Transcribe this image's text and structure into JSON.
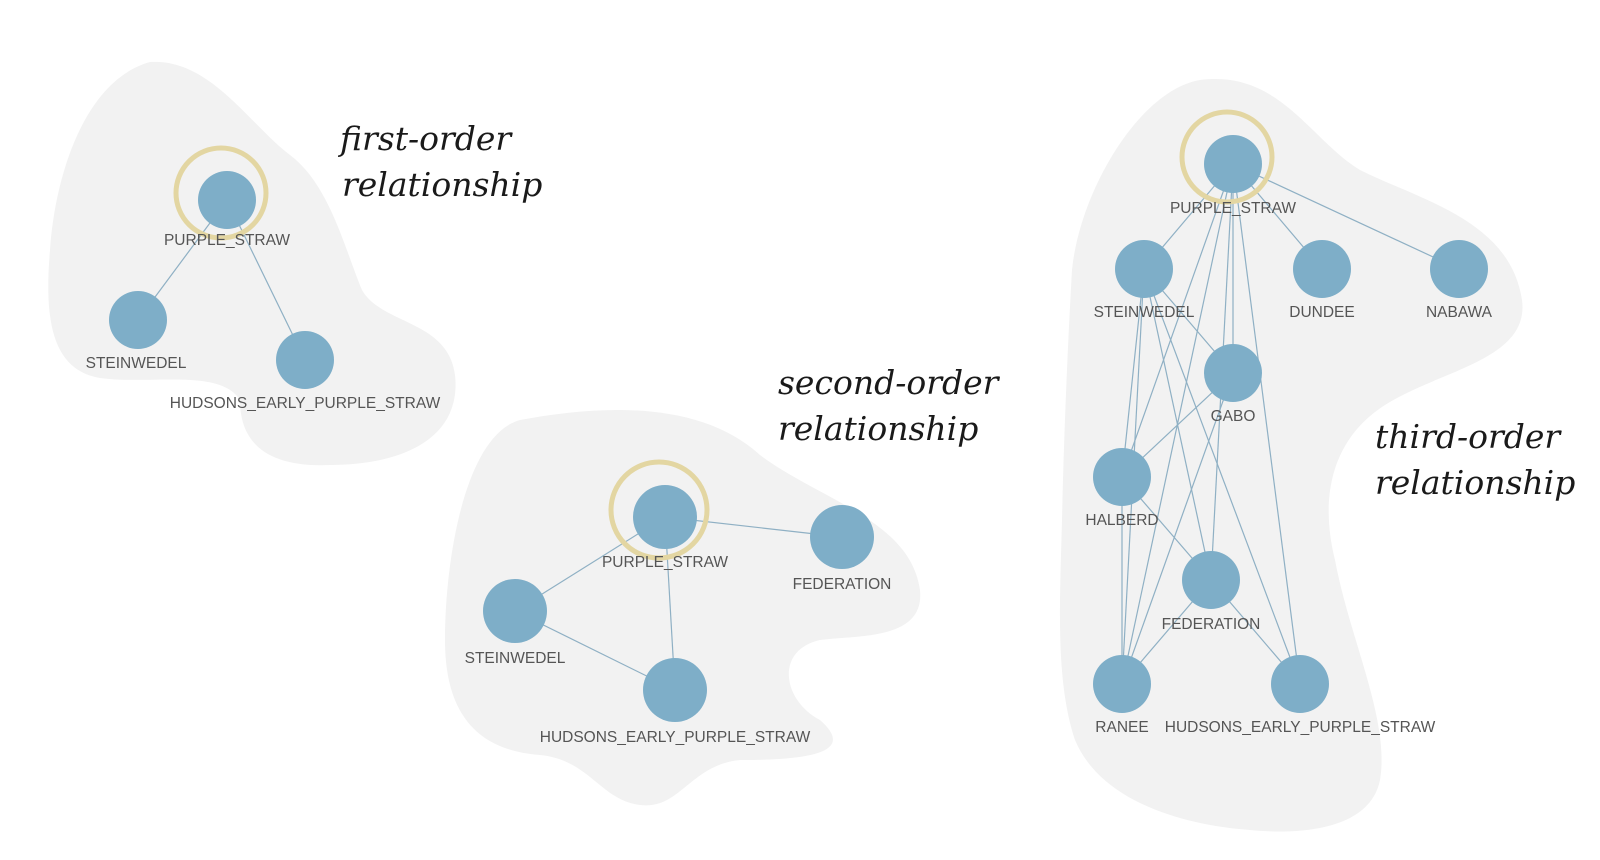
{
  "panels": [
    {
      "id": "first-order",
      "caption_lines": [
        "first-order",
        "relationship"
      ],
      "root": "PURPLE_STRAW",
      "nodes": [
        "PURPLE_STRAW",
        "STEINWEDEL",
        "HUDSONS_EARLY_PURPLE_STRAW"
      ],
      "edges": [
        [
          "PURPLE_STRAW",
          "STEINWEDEL"
        ],
        [
          "PURPLE_STRAW",
          "HUDSONS_EARLY_PURPLE_STRAW"
        ]
      ]
    },
    {
      "id": "second-order",
      "caption_lines": [
        "second-order",
        "relationship"
      ],
      "root": "PURPLE_STRAW",
      "nodes": [
        "PURPLE_STRAW",
        "FEDERATION",
        "STEINWEDEL",
        "HUDSONS_EARLY_PURPLE_STRAW"
      ],
      "edges": [
        [
          "PURPLE_STRAW",
          "FEDERATION"
        ],
        [
          "PURPLE_STRAW",
          "STEINWEDEL"
        ],
        [
          "PURPLE_STRAW",
          "HUDSONS_EARLY_PURPLE_STRAW"
        ],
        [
          "STEINWEDEL",
          "HUDSONS_EARLY_PURPLE_STRAW"
        ]
      ]
    },
    {
      "id": "third-order",
      "caption_lines": [
        "third-order",
        "relationship"
      ],
      "root": "PURPLE_STRAW",
      "nodes": [
        "PURPLE_STRAW",
        "STEINWEDEL",
        "DUNDEE",
        "NABAWA",
        "GABO",
        "HALBERD",
        "FEDERATION",
        "RANEE",
        "HUDSONS_EARLY_PURPLE_STRAW"
      ],
      "edges": [
        [
          "PURPLE_STRAW",
          "STEINWEDEL"
        ],
        [
          "PURPLE_STRAW",
          "DUNDEE"
        ],
        [
          "PURPLE_STRAW",
          "NABAWA"
        ],
        [
          "PURPLE_STRAW",
          "GABO"
        ],
        [
          "PURPLE_STRAW",
          "HALBERD"
        ],
        [
          "PURPLE_STRAW",
          "FEDERATION"
        ],
        [
          "PURPLE_STRAW",
          "RANEE"
        ],
        [
          "PURPLE_STRAW",
          "HUDSONS_EARLY_PURPLE_STRAW"
        ],
        [
          "STEINWEDEL",
          "GABO"
        ],
        [
          "STEINWEDEL",
          "HALBERD"
        ],
        [
          "STEINWEDEL",
          "FEDERATION"
        ],
        [
          "STEINWEDEL",
          "RANEE"
        ],
        [
          "STEINWEDEL",
          "HUDSONS_EARLY_PURPLE_STRAW"
        ],
        [
          "GABO",
          "HALBERD"
        ],
        [
          "GABO",
          "RANEE"
        ],
        [
          "HALBERD",
          "FEDERATION"
        ],
        [
          "HALBERD",
          "RANEE"
        ],
        [
          "FEDERATION",
          "RANEE"
        ],
        [
          "FEDERATION",
          "HUDSONS_EARLY_PURPLE_STRAW"
        ]
      ]
    }
  ],
  "colors": {
    "node": "#7eaec8",
    "edge": "#8fb0c4",
    "root_ring": "#e3d6a2",
    "background_blob": "#f2f2f2",
    "label": "#555555",
    "caption": "#1a1a1a"
  }
}
